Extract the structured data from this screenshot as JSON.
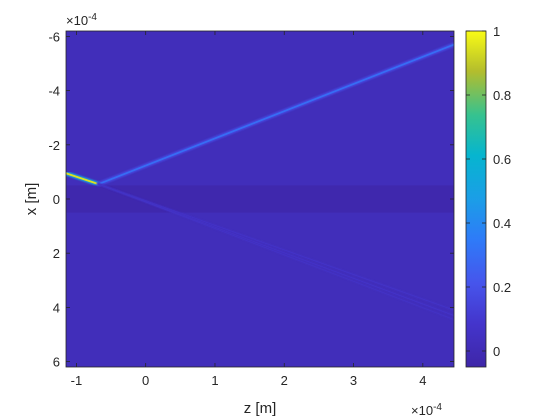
{
  "chart_data": {
    "type": "heatmap",
    "title": "",
    "xlabel": "z [m]",
    "ylabel": "x [m]",
    "x_exponent": "×10",
    "x_exponent_power": "-4",
    "y_exponent": "×10",
    "y_exponent_power": "-4",
    "xlim": [
      -1.15,
      4.45
    ],
    "ylim": [
      -6.2,
      6.2
    ],
    "y_reversed": true,
    "x_ticks": [
      -1,
      0,
      1,
      2,
      3,
      4
    ],
    "x_tick_labels": [
      "-1",
      "0",
      "1",
      "2",
      "3",
      "4"
    ],
    "y_ticks": [
      -6,
      -4,
      -2,
      0,
      2,
      4,
      6
    ],
    "y_tick_labels": [
      "-6",
      "-4",
      "-2",
      "0",
      "2",
      "4",
      "6"
    ],
    "clim": [
      -0.05,
      1
    ],
    "colorbar_ticks": [
      0,
      0.2,
      0.4,
      0.6,
      0.8,
      1
    ],
    "colorbar_tick_labels": [
      "0",
      "0.2",
      "0.4",
      "0.6",
      "0.8",
      "1"
    ],
    "colormap": "parula",
    "background_value": 0.02,
    "band": {
      "x_range": [
        -0.5,
        0.5
      ],
      "value": -0.03
    },
    "beams": [
      {
        "name": "incident",
        "from": [
          -1.15,
          -0.95
        ],
        "to": [
          -0.68,
          -0.55
        ],
        "peak": 0.95
      },
      {
        "name": "reflected",
        "from": [
          -0.68,
          -0.55
        ],
        "to": [
          4.45,
          -5.7
        ],
        "peak": 0.3
      },
      {
        "name": "transmitted-1",
        "from": [
          -0.68,
          -0.55
        ],
        "to": [
          4.45,
          4.1
        ],
        "peak": 0.08
      },
      {
        "name": "transmitted-2",
        "from": [
          -0.68,
          -0.55
        ],
        "to": [
          4.45,
          4.3
        ],
        "peak": 0.08
      },
      {
        "name": "transmitted-3",
        "from": [
          -0.68,
          -0.55
        ],
        "to": [
          4.45,
          4.45
        ],
        "peak": 0.07
      }
    ]
  }
}
